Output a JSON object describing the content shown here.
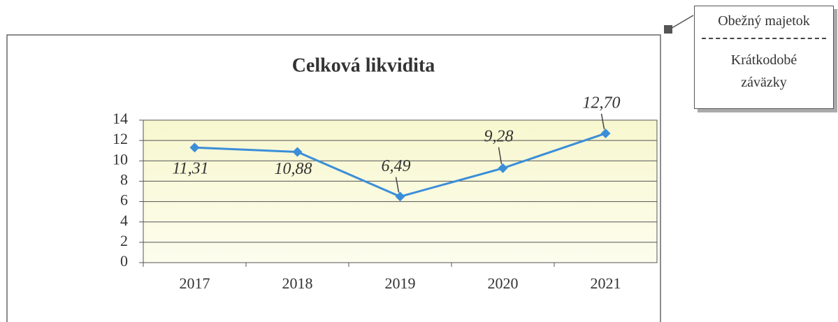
{
  "chart_data": {
    "type": "line",
    "title": "Celková likvidita",
    "categories": [
      "2017",
      "2018",
      "2019",
      "2020",
      "2021"
    ],
    "series": [
      {
        "name": "Celková likvidita",
        "color": "#3b8ed8",
        "values": [
          11.31,
          10.88,
          6.49,
          9.28,
          12.7
        ],
        "value_labels": [
          "11,31",
          "10,88",
          "6,49",
          "9,28",
          "12,70"
        ]
      }
    ],
    "ylim": [
      0,
      14
    ],
    "yticks": [
      0,
      2,
      4,
      6,
      8,
      10,
      12,
      14
    ],
    "grid": true,
    "formula": {
      "numerator": "Obežný majetok",
      "denominator": "Krátkodobé záväzky"
    }
  }
}
